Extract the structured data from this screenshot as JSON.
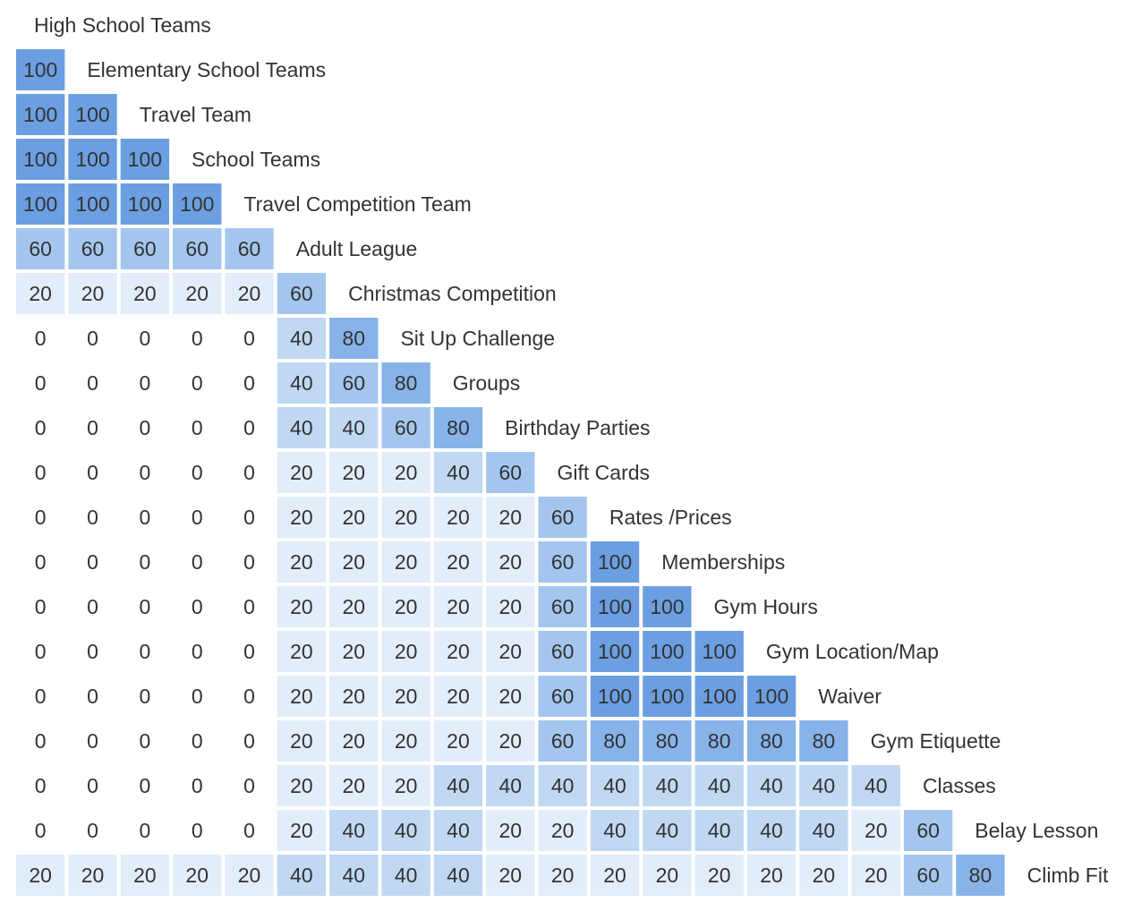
{
  "chart_data": {
    "type": "heatmap",
    "labels": [
      "High School Teams",
      "Elementary School Teams",
      "Travel Team",
      "School Teams",
      "Travel Competition Team",
      "Adult League",
      "Christmas Competition",
      "Sit Up Challenge",
      "Groups",
      "Birthday Parties",
      "Gift Cards",
      "Rates /Prices",
      "Memberships",
      "Gym Hours",
      "Gym Location/Map",
      "Waiver",
      "Gym Etiquette",
      "Classes",
      "Belay Lesson",
      "Climb Fit"
    ],
    "rows": [
      [],
      [
        100
      ],
      [
        100,
        100
      ],
      [
        100,
        100,
        100
      ],
      [
        100,
        100,
        100,
        100
      ],
      [
        60,
        60,
        60,
        60,
        60
      ],
      [
        20,
        20,
        20,
        20,
        20,
        60
      ],
      [
        0,
        0,
        0,
        0,
        0,
        40,
        80
      ],
      [
        0,
        0,
        0,
        0,
        0,
        40,
        60,
        80
      ],
      [
        0,
        0,
        0,
        0,
        0,
        40,
        40,
        60,
        80
      ],
      [
        0,
        0,
        0,
        0,
        0,
        20,
        20,
        20,
        40,
        60
      ],
      [
        0,
        0,
        0,
        0,
        0,
        20,
        20,
        20,
        20,
        20,
        60
      ],
      [
        0,
        0,
        0,
        0,
        0,
        20,
        20,
        20,
        20,
        20,
        60,
        100
      ],
      [
        0,
        0,
        0,
        0,
        0,
        20,
        20,
        20,
        20,
        20,
        60,
        100,
        100
      ],
      [
        0,
        0,
        0,
        0,
        0,
        20,
        20,
        20,
        20,
        20,
        60,
        100,
        100,
        100
      ],
      [
        0,
        0,
        0,
        0,
        0,
        20,
        20,
        20,
        20,
        20,
        60,
        100,
        100,
        100,
        100
      ],
      [
        0,
        0,
        0,
        0,
        0,
        20,
        20,
        20,
        20,
        20,
        60,
        80,
        80,
        80,
        80,
        80
      ],
      [
        0,
        0,
        0,
        0,
        0,
        20,
        20,
        20,
        40,
        40,
        40,
        40,
        40,
        40,
        40,
        40,
        40
      ],
      [
        0,
        0,
        0,
        0,
        0,
        20,
        40,
        40,
        40,
        20,
        20,
        40,
        40,
        40,
        40,
        40,
        20,
        60
      ],
      [
        20,
        20,
        20,
        20,
        20,
        40,
        40,
        40,
        40,
        20,
        20,
        20,
        20,
        20,
        20,
        20,
        20,
        60,
        80
      ]
    ],
    "colors": {
      "0": "#ffffff",
      "20": "#e2edf9",
      "40": "#c0d8f2",
      "60": "#a4c6ee",
      "80": "#87b3e9",
      "100": "#6b9fe1"
    }
  }
}
